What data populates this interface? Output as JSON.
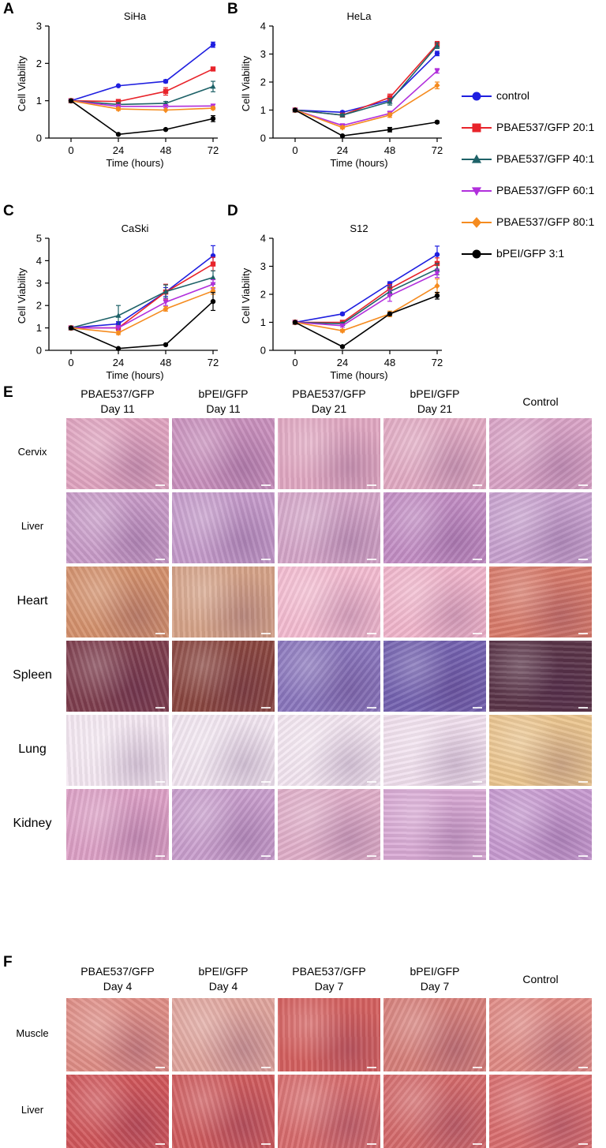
{
  "panels": {
    "A": "A",
    "B": "B",
    "C": "C",
    "D": "D",
    "E": "E",
    "F": "F"
  },
  "colors": {
    "control": "#1f1fe0",
    "pbae20": "#e8232a",
    "pbae40": "#1e6268",
    "pbae60": "#b12fdc",
    "pbae80": "#f58b1f",
    "bpei": "#000000"
  },
  "legend": [
    {
      "label": "control",
      "color": "#1f1fe0",
      "marker": "circle"
    },
    {
      "label": "PBAE537/GFP 20:1",
      "color": "#e8232a",
      "marker": "square"
    },
    {
      "label": "PBAE537/GFP 40:1",
      "color": "#1e6268",
      "marker": "triangle-up"
    },
    {
      "label": "PBAE537/GFP 60:1",
      "color": "#b12fdc",
      "marker": "triangle-down"
    },
    {
      "label": "PBAE537/GFP 80:1",
      "color": "#f58b1f",
      "marker": "diamond"
    },
    {
      "label": "bPEI/GFP 3:1",
      "color": "#000000",
      "marker": "circle"
    }
  ],
  "chart_data": [
    {
      "type": "line",
      "title": "SiHa",
      "xlabel": "Time (hours)",
      "ylabel": "Cell Viability",
      "x": [
        0,
        24,
        48,
        72
      ],
      "xticks": [
        "0",
        "24",
        "48",
        "72"
      ],
      "ylim": [
        0,
        3
      ],
      "yticks": [
        "0",
        "1",
        "2",
        "3"
      ],
      "series": [
        {
          "name": "control",
          "values": [
            1.0,
            1.4,
            1.52,
            2.5
          ],
          "err": [
            0.02,
            0.03,
            0.04,
            0.07
          ]
        },
        {
          "name": "PBAE537/GFP 20:1",
          "values": [
            1.0,
            0.98,
            1.25,
            1.85
          ],
          "err": [
            0.02,
            0.05,
            0.1,
            0.04
          ]
        },
        {
          "name": "PBAE537/GFP 40:1",
          "values": [
            1.0,
            0.9,
            0.93,
            1.38
          ],
          "err": [
            0.02,
            0.05,
            0.05,
            0.14
          ]
        },
        {
          "name": "PBAE537/GFP 60:1",
          "values": [
            1.0,
            0.85,
            0.85,
            0.86
          ],
          "err": [
            0.02,
            0.04,
            0.04,
            0.05
          ]
        },
        {
          "name": "PBAE537/GFP 80:1",
          "values": [
            1.0,
            0.78,
            0.75,
            0.8
          ],
          "err": [
            0.02,
            0.04,
            0.03,
            0.04
          ]
        },
        {
          "name": "bPEI/GFP 3:1",
          "values": [
            1.0,
            0.1,
            0.23,
            0.52
          ],
          "err": [
            0.02,
            0.02,
            0.03,
            0.08
          ]
        }
      ]
    },
    {
      "type": "line",
      "title": "HeLa",
      "xlabel": "Time (hours)",
      "ylabel": "Cell Viability",
      "x": [
        0,
        24,
        48,
        72
      ],
      "xticks": [
        "0",
        "24",
        "48",
        "72"
      ],
      "ylim": [
        0,
        4
      ],
      "yticks": [
        "0",
        "1",
        "2",
        "3",
        "4"
      ],
      "series": [
        {
          "name": "control",
          "values": [
            1.0,
            0.92,
            1.35,
            3.02
          ],
          "err": [
            0.02,
            0.04,
            0.1,
            0.08
          ]
        },
        {
          "name": "PBAE537/GFP 20:1",
          "values": [
            1.0,
            0.82,
            1.45,
            3.35
          ],
          "err": [
            0.02,
            0.04,
            0.12,
            0.1
          ]
        },
        {
          "name": "PBAE537/GFP 40:1",
          "values": [
            1.0,
            0.82,
            1.3,
            3.3
          ],
          "err": [
            0.02,
            0.04,
            0.12,
            0.1
          ]
        },
        {
          "name": "PBAE537/GFP 60:1",
          "values": [
            1.0,
            0.45,
            0.88,
            2.4
          ],
          "err": [
            0.02,
            0.05,
            0.08,
            0.08
          ]
        },
        {
          "name": "PBAE537/GFP 80:1",
          "values": [
            1.0,
            0.38,
            0.82,
            1.88
          ],
          "err": [
            0.02,
            0.05,
            0.08,
            0.12
          ]
        },
        {
          "name": "bPEI/GFP 3:1",
          "values": [
            1.0,
            0.08,
            0.3,
            0.57
          ],
          "err": [
            0.02,
            0.02,
            0.08,
            0.04
          ]
        }
      ]
    },
    {
      "type": "line",
      "title": "CaSki",
      "xlabel": "Time (hours)",
      "ylabel": "Cell Viability",
      "x": [
        0,
        24,
        48,
        72
      ],
      "xticks": [
        "0",
        "24",
        "48",
        "72"
      ],
      "ylim": [
        0,
        5
      ],
      "yticks": [
        "0",
        "1",
        "2",
        "3",
        "4",
        "5"
      ],
      "series": [
        {
          "name": "control",
          "values": [
            1.0,
            1.18,
            2.6,
            4.22
          ],
          "err": [
            0.03,
            0.1,
            0.2,
            0.45
          ]
        },
        {
          "name": "PBAE537/GFP 20:1",
          "values": [
            1.0,
            1.0,
            2.6,
            3.85
          ],
          "err": [
            0.03,
            0.1,
            0.35,
            0.3
          ]
        },
        {
          "name": "PBAE537/GFP 40:1",
          "values": [
            1.0,
            1.55,
            2.62,
            3.25
          ],
          "err": [
            0.03,
            0.45,
            0.3,
            0.3
          ]
        },
        {
          "name": "PBAE537/GFP 60:1",
          "values": [
            1.0,
            1.0,
            2.15,
            2.95
          ],
          "err": [
            0.03,
            0.1,
            0.15,
            0.2
          ]
        },
        {
          "name": "PBAE537/GFP 80:1",
          "values": [
            1.0,
            0.78,
            1.85,
            2.65
          ],
          "err": [
            0.03,
            0.08,
            0.1,
            0.15
          ]
        },
        {
          "name": "bPEI/GFP 3:1",
          "values": [
            1.0,
            0.08,
            0.25,
            2.18
          ],
          "err": [
            0.03,
            0.02,
            0.03,
            0.4
          ]
        }
      ]
    },
    {
      "type": "line",
      "title": "S12",
      "xlabel": "Time (hours)",
      "ylabel": "Cell Viability",
      "x": [
        0,
        24,
        48,
        72
      ],
      "xticks": [
        "0",
        "24",
        "48",
        "72"
      ],
      "ylim": [
        0,
        4
      ],
      "yticks": [
        "0",
        "1",
        "2",
        "3",
        "4"
      ],
      "series": [
        {
          "name": "control",
          "values": [
            1.0,
            1.3,
            2.38,
            3.42
          ],
          "err": [
            0.02,
            0.04,
            0.07,
            0.3
          ]
        },
        {
          "name": "PBAE537/GFP 20:1",
          "values": [
            1.0,
            1.0,
            2.2,
            3.1
          ],
          "err": [
            0.02,
            0.05,
            0.15,
            0.2
          ]
        },
        {
          "name": "PBAE537/GFP 40:1",
          "values": [
            1.0,
            0.95,
            2.1,
            2.9
          ],
          "err": [
            0.02,
            0.05,
            0.15,
            0.2
          ]
        },
        {
          "name": "PBAE537/GFP 60:1",
          "values": [
            1.0,
            0.88,
            1.95,
            2.75
          ],
          "err": [
            0.02,
            0.05,
            0.2,
            0.15
          ]
        },
        {
          "name": "PBAE537/GFP 80:1",
          "values": [
            1.0,
            0.7,
            1.3,
            2.3
          ],
          "err": [
            0.02,
            0.05,
            0.1,
            0.25
          ]
        },
        {
          "name": "bPEI/GFP 3:1",
          "values": [
            1.0,
            0.13,
            1.3,
            1.95
          ],
          "err": [
            0.02,
            0.02,
            0.05,
            0.12
          ]
        }
      ]
    }
  ],
  "histology_e": {
    "columns": [
      {
        "line1": "PBAE537/GFP",
        "line2": "Day 11"
      },
      {
        "line1": "bPEI/GFP",
        "line2": "Day 11"
      },
      {
        "line1": "PBAE537/GFP",
        "line2": "Day 21"
      },
      {
        "line1": "bPEI/GFP",
        "line2": "Day 21"
      },
      {
        "line1": "",
        "line2": "Control"
      }
    ],
    "rows": [
      {
        "label": "Cervix",
        "tiles": [
          "#e0a4c0",
          "#c990bd",
          "#e1a8c2",
          "#e2abc4",
          "#d9a3c6"
        ]
      },
      {
        "label": "Liver",
        "tiles": [
          "#c89bc8",
          "#c59bcb",
          "#d5a6c9",
          "#c28dc4",
          "#c8a2cf"
        ]
      },
      {
        "label": "Heart",
        "tiles": [
          "#d4916c",
          "#d6a388",
          "#f4bcd1",
          "#f1b6cc",
          "#d87a6a"
        ]
      },
      {
        "label": "Spleen",
        "tiles": [
          "#7e3e4e",
          "#8a4640",
          "#8a76bd",
          "#7462b0",
          "#5a3448"
        ]
      },
      {
        "label": "Lung",
        "tiles": [
          "#f4e8f2",
          "#f2e6f1",
          "#f3e6f1",
          "#f1e0ee",
          "#ebc58f"
        ]
      },
      {
        "label": "Kidney",
        "tiles": [
          "#dda0c6",
          "#c99ecd",
          "#e0aec9",
          "#d9aad5",
          "#c79ad0"
        ]
      }
    ]
  },
  "histology_f": {
    "columns": [
      {
        "line1": "PBAE537/GFP",
        "line2": "Day 4"
      },
      {
        "line1": "bPEI/GFP",
        "line2": "Day 4"
      },
      {
        "line1": "PBAE537/GFP",
        "line2": "Day 7"
      },
      {
        "line1": "bPEI/GFP",
        "line2": "Day 7"
      },
      {
        "line1": "",
        "line2": "Control"
      }
    ],
    "rows": [
      {
        "label": "Muscle",
        "tiles": [
          "#df8d86",
          "#e0a59d",
          "#d4605f",
          "#d77f7a",
          "#e08a85"
        ]
      },
      {
        "label": "Liver",
        "tiles": [
          "#d0565a",
          "#cf5b5e",
          "#d86c6d",
          "#d46a6b",
          "#d96d6e"
        ]
      }
    ]
  }
}
